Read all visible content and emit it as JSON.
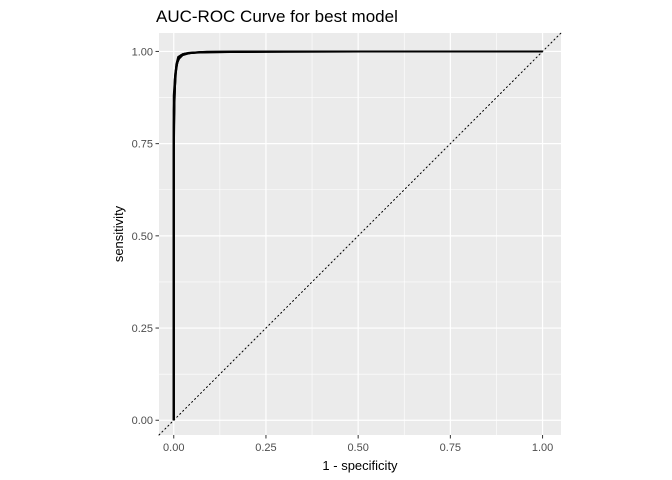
{
  "chart_data": {
    "type": "line",
    "title": "AUC-ROC Curve for best model",
    "xlabel": "1 - specificity",
    "ylabel": "sensitivity",
    "xlim": [
      -0.04,
      1.05
    ],
    "ylim": [
      -0.04,
      1.05
    ],
    "x_ticks": [
      0.0,
      0.25,
      0.5,
      0.75,
      1.0
    ],
    "x_tick_labels": [
      "0.00",
      "0.25",
      "0.50",
      "0.75",
      "1.00"
    ],
    "y_ticks": [
      0.0,
      0.25,
      0.5,
      0.75,
      1.0
    ],
    "y_tick_labels": [
      "0.00",
      "0.25",
      "0.50",
      "0.75",
      "1.00"
    ],
    "grid": true,
    "panel_background": "#ebebeb",
    "grid_color": "#ffffff",
    "line_color": "#000000",
    "reference_line": {
      "style": "dotted",
      "x": [
        -0.04,
        1.05
      ],
      "y": [
        -0.04,
        1.05
      ]
    },
    "series": [
      {
        "x": [
          0.0,
          0.0,
          0.002,
          0.004,
          0.007,
          0.012,
          0.025,
          0.06,
          0.2,
          0.5,
          1.0
        ],
        "y": [
          0.0,
          0.72,
          0.86,
          0.93,
          0.965,
          0.985,
          0.993,
          0.997,
          0.999,
          1.0,
          1.0
        ]
      },
      {
        "x": [
          0.0,
          0.0,
          0.003,
          0.006,
          0.01,
          0.018,
          0.035,
          0.08,
          0.25,
          0.52,
          1.0
        ],
        "y": [
          0.0,
          0.8,
          0.9,
          0.945,
          0.972,
          0.988,
          0.995,
          0.998,
          0.999,
          1.0,
          1.0
        ]
      },
      {
        "x": [
          0.0,
          0.0,
          0.004,
          0.008,
          0.014,
          0.024,
          0.045,
          0.1,
          0.3,
          1.0
        ],
        "y": [
          0.0,
          0.88,
          0.94,
          0.965,
          0.98,
          0.99,
          0.996,
          0.998,
          1.0,
          1.0
        ]
      },
      {
        "x": [
          0.0,
          0.0,
          0.002,
          0.005,
          0.009,
          0.016,
          0.03,
          0.07,
          0.18,
          1.0
        ],
        "y": [
          0.0,
          0.76,
          0.88,
          0.94,
          0.97,
          0.986,
          0.994,
          0.998,
          1.0,
          1.0
        ]
      },
      {
        "x": [
          0.0,
          0.0,
          0.003,
          0.007,
          0.012,
          0.02,
          0.04,
          0.09,
          0.22,
          1.0
        ],
        "y": [
          0.0,
          0.84,
          0.925,
          0.958,
          0.978,
          0.99,
          0.996,
          0.999,
          1.0,
          1.0
        ]
      }
    ]
  }
}
